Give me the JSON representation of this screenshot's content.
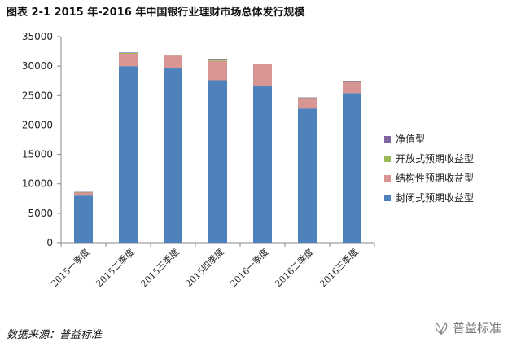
{
  "figure": {
    "title": "图表 2-1 2015 年-2016 年中国银行业理财市场总体发行规模",
    "source": "数据来源：普益标准",
    "watermark": "普益标准",
    "logo_icon": "leaf-logo-icon"
  },
  "chart_data": {
    "type": "bar",
    "stacked": true,
    "categories": [
      "2015一季度",
      "2015二季度",
      "2015三季度",
      "2015四季度",
      "2016一季度",
      "2016二季度",
      "2016三季度"
    ],
    "series": [
      {
        "name": "封闭式预期收益型",
        "color": "#4f81bd",
        "values": [
          8000,
          30000,
          29600,
          27600,
          26700,
          22800,
          25400
        ]
      },
      {
        "name": "结构性预期收益型",
        "color": "#d99594",
        "values": [
          500,
          2100,
          2200,
          3300,
          3600,
          1800,
          1900
        ]
      },
      {
        "name": "开放式预期收益型",
        "color": "#9bbb59",
        "values": [
          100,
          200,
          100,
          200,
          100,
          50,
          60
        ]
      },
      {
        "name": "净值型",
        "color": "#8064a2",
        "values": [
          30,
          30,
          30,
          30,
          30,
          30,
          30
        ]
      }
    ],
    "ylim": [
      0,
      35000
    ],
    "yticks": [
      0,
      5000,
      10000,
      15000,
      20000,
      25000,
      30000,
      35000
    ],
    "legend_position": "right",
    "grid": false
  }
}
